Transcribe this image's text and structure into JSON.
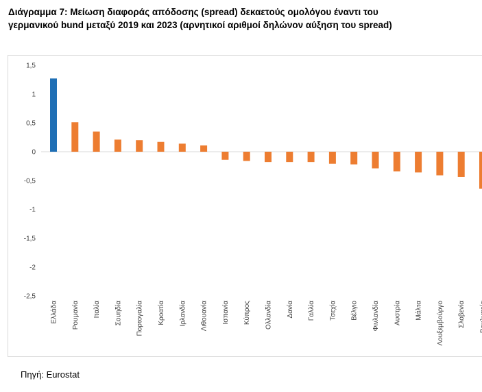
{
  "title": "Διάγραμμα 7: Μείωση διαφοράς απόδοσης (spread) δεκαετούς ομολόγου έναντι του γερμανικού bund μεταξύ 2019 και 2023 (αρνητικοί αριθμοί δηλώνον αύξηση του spread)",
  "source": "Πηγή: Eurostat",
  "chart_data": {
    "type": "bar",
    "categories": [
      "Ελλάδα",
      "Ρουμανία",
      "Ιταλία",
      "Σουηδία",
      "Πορτογαλία",
      "Κροατία",
      "Ιρλανδία",
      "Λιθουανία",
      "Ισπανία",
      "Κύπρος",
      "Ολλανδία",
      "Δανία",
      "Γαλλία",
      "Τσεχία",
      "Βέλγιο",
      "Φινλανδία",
      "Αυστρία",
      "Μάλτα",
      "Λουξεμβούργο",
      "Σλοβενία",
      "Βουλγαρία"
    ],
    "values": [
      1.27,
      0.51,
      0.35,
      0.21,
      0.2,
      0.17,
      0.14,
      0.11,
      -0.14,
      -0.16,
      -0.18,
      -0.18,
      -0.18,
      -0.21,
      -0.22,
      -0.29,
      -0.34,
      -0.36,
      -0.41,
      -0.44,
      -0.64
    ],
    "ylim": [
      -2.5,
      1.5
    ],
    "yticks": [
      1.5,
      1,
      0.5,
      0,
      -0.5,
      -1,
      -1.5,
      -2,
      -2.5
    ],
    "ytick_labels": [
      "1,5",
      "1",
      "0,5",
      "0",
      "-0,5",
      "-1",
      "-1,5",
      "-2",
      "-2,5"
    ],
    "highlight_color": "#1f6fb5",
    "bar_color": "#ed7d31",
    "grid": false,
    "xlabel": "",
    "ylabel": ""
  }
}
